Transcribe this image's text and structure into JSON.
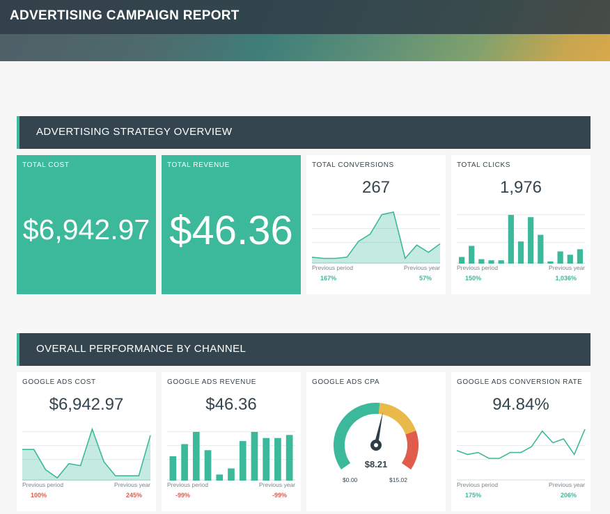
{
  "header": {
    "title": "ADVERTISING CAMPAIGN REPORT"
  },
  "sections": {
    "overview": "ADVERTISING STRATEGY OVERVIEW",
    "channel": "OVERALL PERFORMANCE BY CHANNEL"
  },
  "colors": {
    "accent": "#3bb99a",
    "dark": "#34454f",
    "negative": "#e05c4b",
    "gauge_yellow": "#e9b949"
  },
  "cards": {
    "total_cost": {
      "title": "TOTAL COST",
      "value": "$6,942.97"
    },
    "total_revenue": {
      "title": "TOTAL REVENUE",
      "value": "$46.36"
    },
    "total_conversions": {
      "title": "TOTAL CONVERSIONS",
      "value": "267",
      "prev_period_label": "Previous period",
      "prev_period_value": "167%",
      "prev_year_label": "Previous year",
      "prev_year_value": "57%",
      "series": [
        3,
        2,
        2,
        3,
        16,
        22,
        38,
        40,
        2,
        13,
        7,
        14
      ]
    },
    "total_clicks": {
      "title": "TOTAL CLICKS",
      "value": "1,976",
      "prev_period_label": "Previous period",
      "prev_period_value": "150%",
      "prev_year_label": "Previous year",
      "prev_year_value": "1,036%",
      "series": [
        6,
        16,
        4,
        3,
        3,
        44,
        20,
        42,
        26,
        2,
        11,
        8,
        13
      ]
    },
    "google_ads_cost": {
      "title": "GOOGLE ADS COST",
      "value": "$6,942.97",
      "prev_period_label": "Previous period",
      "prev_period_value": "100%",
      "prev_year_label": "Previous year",
      "prev_year_value": "245%",
      "series": [
        14,
        14,
        4,
        0,
        7,
        6,
        24,
        8,
        1,
        1,
        1,
        21
      ]
    },
    "google_ads_revenue": {
      "title": "GOOGLE ADS REVENUE",
      "value": "$46.36",
      "prev_period_label": "Previous period",
      "prev_period_value": "-99%",
      "prev_year_label": "Previous year",
      "prev_year_value": "-99%",
      "series": [
        8,
        12,
        16,
        10,
        2,
        4,
        13,
        16,
        14,
        14,
        15
      ]
    },
    "google_ads_cpa": {
      "title": "GOOGLE ADS CPA",
      "value": "$8.21",
      "min": "$0.00",
      "max": "$15.02",
      "min_value": 0,
      "max_value": 15.02,
      "current": 8.21
    },
    "google_ads_conversion_rate": {
      "title": "GOOGLE ADS CONVERSION RATE",
      "value": "94.84%",
      "prev_period_label": "Previous period",
      "prev_period_value": "175%",
      "prev_year_label": "Previous year",
      "prev_year_value": "206%",
      "series": [
        14,
        12,
        13,
        10,
        10,
        13,
        13,
        16,
        24,
        18,
        20,
        12,
        25
      ]
    }
  }
}
